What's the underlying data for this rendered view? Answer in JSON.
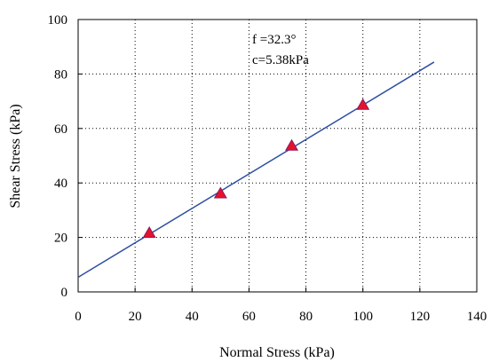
{
  "chart_data": {
    "type": "scatter",
    "xlabel": "Normal Stress (kPa)",
    "ylabel": "Shear Stress (kPa)",
    "xlim": [
      0,
      140
    ],
    "ylim": [
      0,
      100
    ],
    "x_ticks": [
      0,
      20,
      40,
      60,
      80,
      100,
      120,
      140
    ],
    "y_ticks": [
      0,
      20,
      40,
      60,
      80,
      100
    ],
    "grid": true,
    "grid_style": "dotted",
    "points": {
      "x": [
        25,
        50,
        75,
        100
      ],
      "y": [
        21.5,
        36,
        53.5,
        68.5
      ],
      "marker": "triangle",
      "color": "#e8112d",
      "edge_color": "#8b1a5a"
    },
    "fit_line": {
      "intercept": 5.38,
      "slope": 0.632,
      "x_range": [
        0,
        125
      ],
      "color": "#2e4fa3"
    },
    "annotations": [
      "f =32.3°",
      "c=5.38kPa"
    ]
  }
}
